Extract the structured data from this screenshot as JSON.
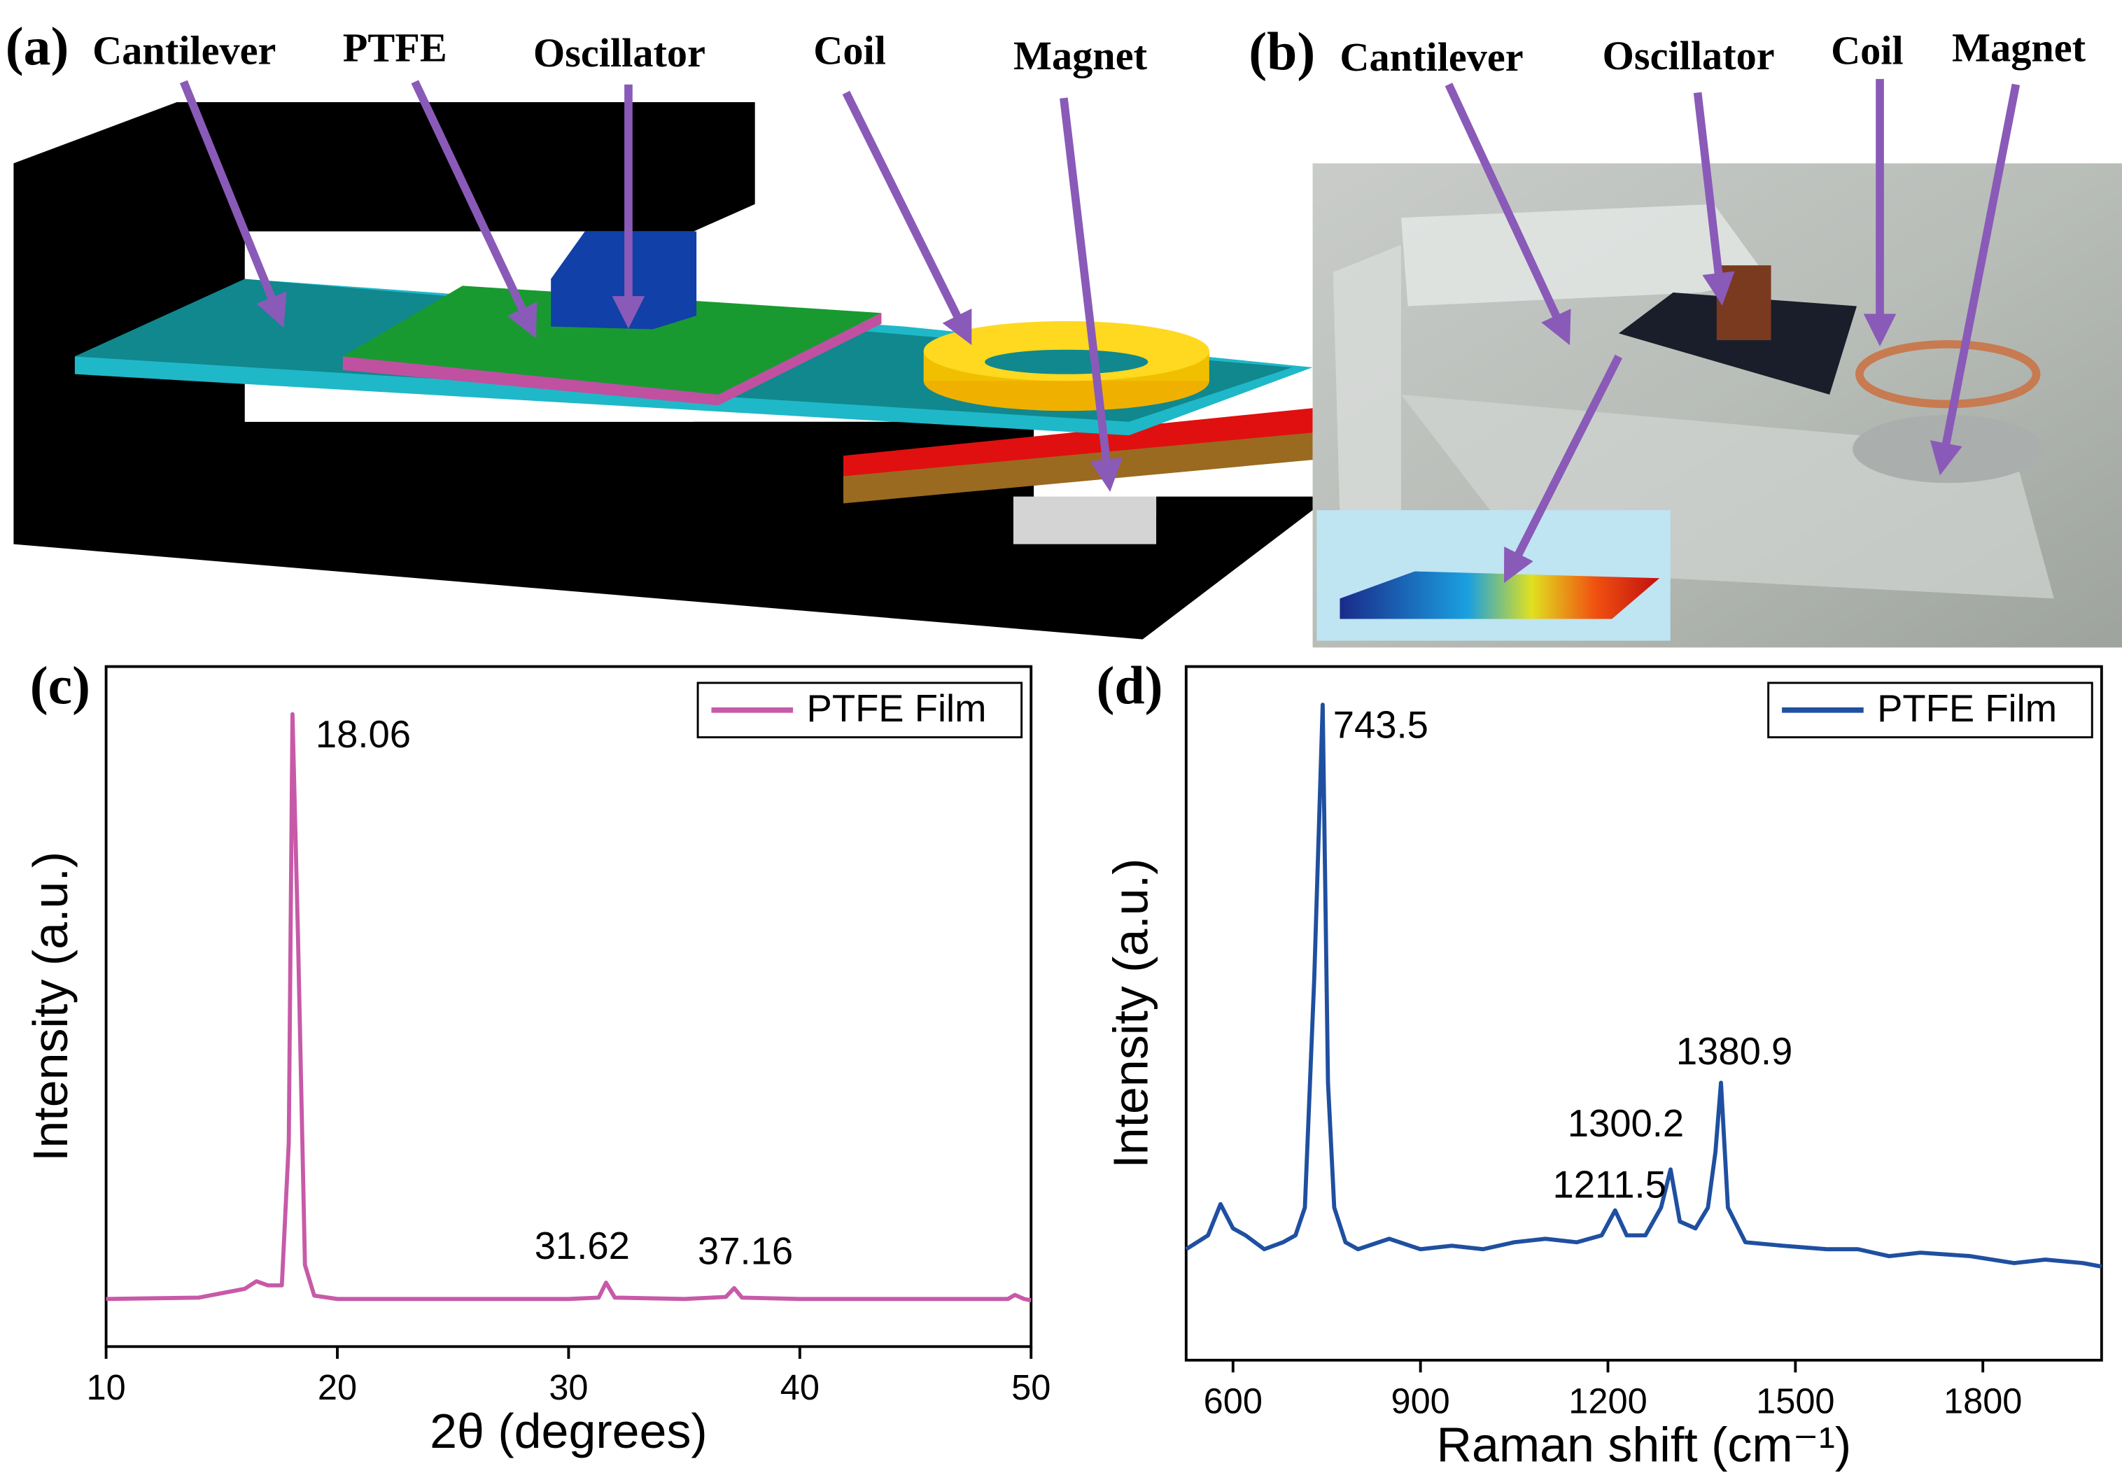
{
  "panel_a": {
    "label": "(a)",
    "parts": [
      "Cantilever",
      "PTFE",
      "Oscillator",
      "Coil",
      "Magnet"
    ]
  },
  "panel_b": {
    "label": "(b)",
    "parts": [
      "Cantilever",
      "Oscillator",
      "Coil",
      "Magnet"
    ]
  },
  "chart_data": [
    {
      "type": "line",
      "panel_label": "(c)",
      "xlabel": "2θ (degrees)",
      "ylabel": "Intensity (a.u.)",
      "x": [
        10,
        14,
        16,
        16.5,
        17,
        17.6,
        17.9,
        18.06,
        18.3,
        18.6,
        19,
        20,
        25,
        30,
        31.3,
        31.62,
        32,
        35,
        36.8,
        37.16,
        37.5,
        40,
        45,
        49,
        49.3,
        49.7,
        50
      ],
      "series": [
        {
          "name": "PTFE Film",
          "color": "#c75aa8",
          "values": [
            7,
            7.2,
            8.5,
            9.6,
            9,
            9,
            30,
            93,
            60,
            12,
            7.5,
            7,
            7,
            7,
            7.2,
            9.4,
            7.2,
            7,
            7.3,
            8.6,
            7.2,
            7,
            7,
            7,
            7.6,
            7,
            6.8
          ]
        }
      ],
      "xlim": [
        10,
        50
      ],
      "ylim": [
        0,
        100
      ],
      "xticks": [
        10,
        20,
        30,
        40,
        50
      ],
      "annotations": [
        "18.06",
        "31.62",
        "37.16"
      ]
    },
    {
      "type": "line",
      "panel_label": "(d)",
      "xlabel": "Raman shift (cm⁻¹)",
      "ylabel": "Intensity (a.u.)",
      "x": [
        525,
        560,
        580,
        600,
        620,
        650,
        680,
        700,
        715,
        730,
        743.5,
        752,
        762,
        780,
        800,
        850,
        900,
        950,
        1000,
        1050,
        1100,
        1150,
        1190,
        1211.5,
        1230,
        1260,
        1285,
        1300.2,
        1315,
        1340,
        1360,
        1372,
        1380.9,
        1392,
        1420,
        1480,
        1550,
        1600,
        1650,
        1700,
        1780,
        1850,
        1900,
        1960,
        1990
      ],
      "series": [
        {
          "name": "PTFE Film",
          "color": "#1f4fa0",
          "values": [
            16,
            18,
            22.5,
            19,
            18,
            16,
            17,
            18,
            22,
            55,
            94.5,
            40,
            22,
            17,
            16,
            17.5,
            16,
            16.5,
            16,
            17,
            17.5,
            17,
            18,
            21.6,
            18,
            18,
            22,
            27.5,
            20,
            19,
            22,
            30,
            40,
            22,
            17,
            16.5,
            16,
            16,
            15,
            15.5,
            15,
            14,
            14.5,
            14,
            13.5
          ]
        }
      ],
      "xlim": [
        525,
        1990
      ],
      "ylim": [
        0,
        100
      ],
      "xticks": [
        600,
        900,
        1200,
        1500,
        1800
      ],
      "annotations": [
        "743.5",
        "1211.5",
        "1300.2",
        "1380.9"
      ]
    }
  ]
}
